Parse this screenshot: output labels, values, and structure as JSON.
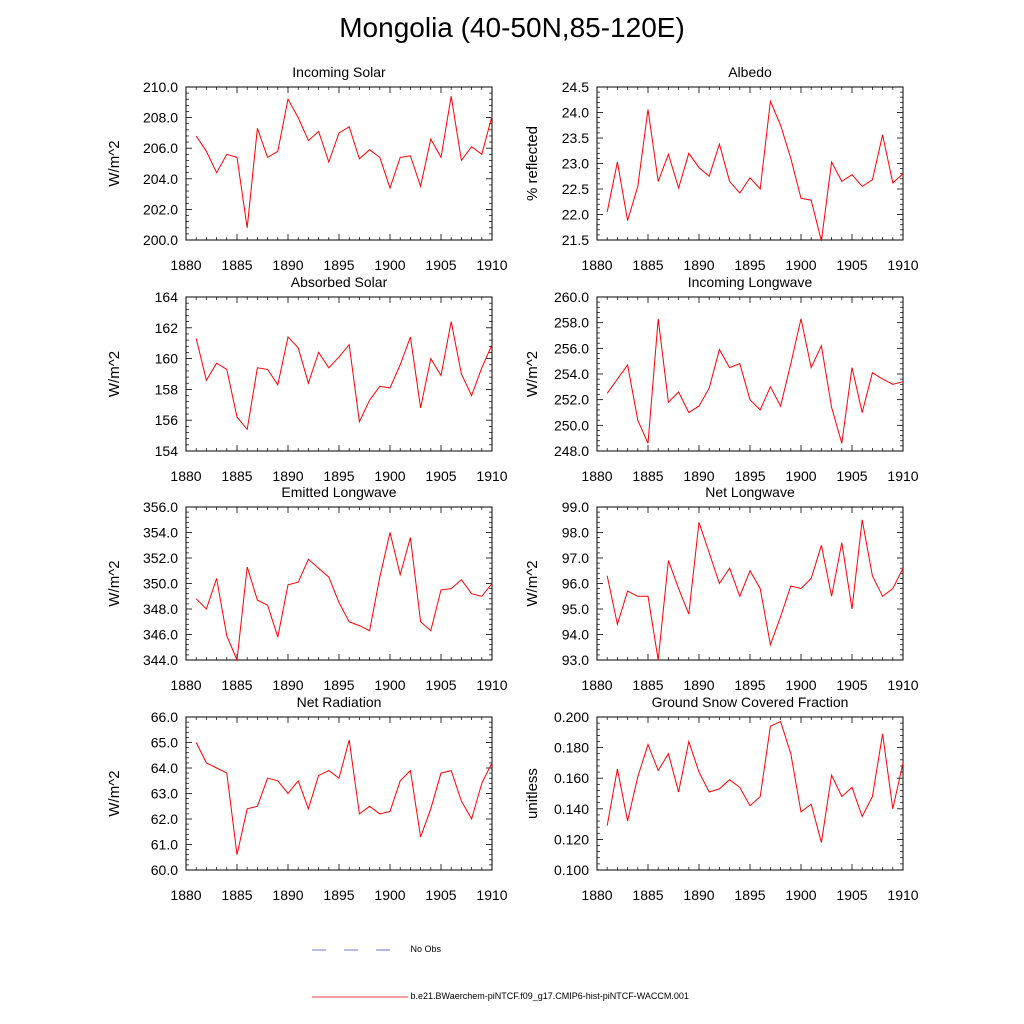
{
  "page": {
    "title": "Mongolia (40-50N,85-120E)"
  },
  "legend": {
    "entries": [
      {
        "label": "No Obs",
        "color": "#3b4cc0",
        "style": "dashed"
      },
      {
        "label": "b.e21.BWaerchem-piNTCF.f09_g17.CMIP6-hist-piNTCF-WACCM.001",
        "color": "#ff0000",
        "style": "solid"
      }
    ]
  },
  "chart_data": [
    {
      "type": "line",
      "title": "Incoming Solar",
      "ylabel": "W/m^2",
      "xlim": [
        1880,
        1910
      ],
      "ylim": [
        200,
        210
      ],
      "xticks": [
        1880,
        1885,
        1890,
        1895,
        1900,
        1905,
        1910
      ],
      "yticks": [
        "200.0",
        "202.0",
        "204.0",
        "206.0",
        "208.0",
        "210.0"
      ],
      "x": [
        1881,
        1882,
        1883,
        1884,
        1885,
        1886,
        1887,
        1888,
        1889,
        1890,
        1891,
        1892,
        1893,
        1894,
        1895,
        1896,
        1897,
        1898,
        1899,
        1900,
        1901,
        1902,
        1903,
        1904,
        1905,
        1906,
        1907,
        1908,
        1909,
        1910
      ],
      "series": [
        {
          "color": "#ff0000",
          "values": [
            206.8,
            205.8,
            204.4,
            205.6,
            205.4,
            200.8,
            207.3,
            205.4,
            205.8,
            209.2,
            208.0,
            206.5,
            207.1,
            205.1,
            207.0,
            207.4,
            205.3,
            205.9,
            205.4,
            203.4,
            205.4,
            205.5,
            203.5,
            206.6,
            205.4,
            209.4,
            205.2,
            206.1,
            205.6,
            208.1
          ]
        }
      ]
    },
    {
      "type": "line",
      "title": "Albedo",
      "ylabel": "% reflected",
      "xlim": [
        1880,
        1910
      ],
      "ylim": [
        21.5,
        24.5
      ],
      "xticks": [
        1880,
        1885,
        1890,
        1895,
        1900,
        1905,
        1910
      ],
      "yticks": [
        "21.5",
        "22.0",
        "22.5",
        "23.0",
        "23.5",
        "24.0",
        "24.5"
      ],
      "x": [
        1881,
        1882,
        1883,
        1884,
        1885,
        1886,
        1887,
        1888,
        1889,
        1890,
        1891,
        1892,
        1893,
        1894,
        1895,
        1896,
        1897,
        1898,
        1899,
        1900,
        1901,
        1902,
        1903,
        1904,
        1905,
        1906,
        1907,
        1908,
        1909,
        1910
      ],
      "series": [
        {
          "color": "#ff0000",
          "values": [
            22.05,
            23.03,
            21.88,
            22.55,
            24.06,
            22.65,
            23.18,
            22.52,
            23.2,
            22.92,
            22.75,
            23.38,
            22.65,
            22.42,
            22.72,
            22.5,
            24.22,
            23.75,
            23.1,
            22.32,
            22.28,
            21.48,
            23.03,
            22.65,
            22.78,
            22.55,
            22.68,
            23.56,
            22.62,
            22.8
          ]
        }
      ]
    },
    {
      "type": "line",
      "title": "Absorbed Solar",
      "ylabel": "W/m^2",
      "xlim": [
        1880,
        1910
      ],
      "ylim": [
        154,
        164
      ],
      "xticks": [
        1880,
        1885,
        1890,
        1895,
        1900,
        1905,
        1910
      ],
      "yticks": [
        "154",
        "156",
        "158",
        "160",
        "162",
        "164"
      ],
      "x": [
        1881,
        1882,
        1883,
        1884,
        1885,
        1886,
        1887,
        1888,
        1889,
        1890,
        1891,
        1892,
        1893,
        1894,
        1895,
        1896,
        1897,
        1898,
        1899,
        1900,
        1901,
        1902,
        1903,
        1904,
        1905,
        1906,
        1907,
        1908,
        1909,
        1910
      ],
      "series": [
        {
          "color": "#ff0000",
          "values": [
            161.3,
            158.6,
            159.7,
            159.3,
            156.2,
            155.4,
            159.4,
            159.3,
            158.3,
            161.4,
            160.7,
            158.4,
            160.4,
            159.4,
            160.1,
            160.9,
            155.9,
            157.3,
            158.2,
            158.1,
            159.6,
            161.4,
            156.8,
            160.0,
            158.9,
            162.4,
            159.0,
            157.6,
            159.4,
            160.9
          ]
        }
      ]
    },
    {
      "type": "line",
      "title": "Incoming Longwave",
      "ylabel": "W/m^2",
      "xlim": [
        1880,
        1910
      ],
      "ylim": [
        248,
        260
      ],
      "xticks": [
        1880,
        1885,
        1890,
        1895,
        1900,
        1905,
        1910
      ],
      "yticks": [
        "248.0",
        "250.0",
        "252.0",
        "254.0",
        "256.0",
        "258.0",
        "260.0"
      ],
      "x": [
        1881,
        1882,
        1883,
        1884,
        1885,
        1886,
        1887,
        1888,
        1889,
        1890,
        1891,
        1892,
        1893,
        1894,
        1895,
        1896,
        1897,
        1898,
        1899,
        1900,
        1901,
        1902,
        1903,
        1904,
        1905,
        1906,
        1907,
        1908,
        1909,
        1910
      ],
      "series": [
        {
          "color": "#ff0000",
          "values": [
            252.5,
            253.6,
            254.7,
            250.4,
            248.6,
            258.3,
            251.8,
            252.6,
            251.0,
            251.5,
            252.9,
            255.9,
            254.5,
            254.8,
            252.0,
            251.2,
            253.0,
            251.5,
            254.8,
            258.3,
            254.5,
            256.2,
            251.4,
            248.6,
            254.5,
            251.0,
            254.1,
            253.6,
            253.2,
            253.4
          ]
        }
      ]
    },
    {
      "type": "line",
      "title": "Emitted Longwave",
      "ylabel": "W/m^2",
      "xlim": [
        1880,
        1910
      ],
      "ylim": [
        344,
        356
      ],
      "xticks": [
        1880,
        1885,
        1890,
        1895,
        1900,
        1905,
        1910
      ],
      "yticks": [
        "344.0",
        "346.0",
        "348.0",
        "350.0",
        "352.0",
        "354.0",
        "356.0"
      ],
      "x": [
        1881,
        1882,
        1883,
        1884,
        1885,
        1886,
        1887,
        1888,
        1889,
        1890,
        1891,
        1892,
        1893,
        1894,
        1895,
        1896,
        1897,
        1898,
        1899,
        1900,
        1901,
        1902,
        1903,
        1904,
        1905,
        1906,
        1907,
        1908,
        1909,
        1910
      ],
      "series": [
        {
          "color": "#ff0000",
          "values": [
            348.8,
            348.0,
            350.4,
            345.9,
            344.0,
            351.3,
            348.7,
            348.3,
            345.8,
            349.9,
            350.1,
            351.9,
            351.2,
            350.5,
            348.5,
            347.0,
            346.7,
            346.3,
            350.5,
            354.0,
            350.7,
            353.6,
            347.0,
            346.3,
            349.5,
            349.6,
            350.3,
            349.2,
            349.0,
            350.0
          ]
        }
      ]
    },
    {
      "type": "line",
      "title": "Net Longwave",
      "ylabel": "W/m^2",
      "xlim": [
        1880,
        1910
      ],
      "ylim": [
        93,
        99
      ],
      "xticks": [
        1880,
        1885,
        1890,
        1895,
        1900,
        1905,
        1910
      ],
      "yticks": [
        "93.0",
        "94.0",
        "95.0",
        "96.0",
        "97.0",
        "98.0",
        "99.0"
      ],
      "x": [
        1881,
        1882,
        1883,
        1884,
        1885,
        1886,
        1887,
        1888,
        1889,
        1890,
        1891,
        1892,
        1893,
        1894,
        1895,
        1896,
        1897,
        1898,
        1899,
        1900,
        1901,
        1902,
        1903,
        1904,
        1905,
        1906,
        1907,
        1908,
        1909,
        1910
      ],
      "series": [
        {
          "color": "#ff0000",
          "values": [
            96.3,
            94.4,
            95.7,
            95.5,
            95.5,
            93.0,
            96.9,
            95.8,
            94.8,
            98.4,
            97.2,
            96.0,
            96.6,
            95.5,
            96.5,
            95.8,
            93.6,
            94.7,
            95.9,
            95.8,
            96.2,
            97.5,
            95.5,
            97.6,
            95.0,
            98.5,
            96.3,
            95.5,
            95.8,
            96.6
          ]
        }
      ]
    },
    {
      "type": "line",
      "title": "Net Radiation",
      "ylabel": "W/m^2",
      "xlim": [
        1880,
        1910
      ],
      "ylim": [
        60,
        66
      ],
      "xticks": [
        1880,
        1885,
        1890,
        1895,
        1900,
        1905,
        1910
      ],
      "yticks": [
        "60.0",
        "61.0",
        "62.0",
        "63.0",
        "64.0",
        "65.0",
        "66.0"
      ],
      "x": [
        1881,
        1882,
        1883,
        1884,
        1885,
        1886,
        1887,
        1888,
        1889,
        1890,
        1891,
        1892,
        1893,
        1894,
        1895,
        1896,
        1897,
        1898,
        1899,
        1900,
        1901,
        1902,
        1903,
        1904,
        1905,
        1906,
        1907,
        1908,
        1909,
        1910
      ],
      "series": [
        {
          "color": "#ff0000",
          "values": [
            65.0,
            64.2,
            64.0,
            63.8,
            60.6,
            62.4,
            62.5,
            63.6,
            63.5,
            63.0,
            63.5,
            62.4,
            63.7,
            63.9,
            63.6,
            65.1,
            62.2,
            62.5,
            62.2,
            62.3,
            63.5,
            63.9,
            61.3,
            62.4,
            63.8,
            63.9,
            62.7,
            62.0,
            63.4,
            64.2
          ]
        }
      ]
    },
    {
      "type": "line",
      "title": "Ground Snow Covered Fraction",
      "ylabel": "unitless",
      "xlim": [
        1880,
        1910
      ],
      "ylim": [
        0.1,
        0.2
      ],
      "xticks": [
        1880,
        1885,
        1890,
        1895,
        1900,
        1905,
        1910
      ],
      "yticks": [
        "0.100",
        "0.120",
        "0.140",
        "0.160",
        "0.180",
        "0.200"
      ],
      "x": [
        1881,
        1882,
        1883,
        1884,
        1885,
        1886,
        1887,
        1888,
        1889,
        1890,
        1891,
        1892,
        1893,
        1894,
        1895,
        1896,
        1897,
        1898,
        1899,
        1900,
        1901,
        1902,
        1903,
        1904,
        1905,
        1906,
        1907,
        1908,
        1909,
        1910
      ],
      "series": [
        {
          "color": "#ff0000",
          "values": [
            0.129,
            0.166,
            0.132,
            0.161,
            0.182,
            0.165,
            0.176,
            0.151,
            0.184,
            0.164,
            0.151,
            0.153,
            0.159,
            0.154,
            0.142,
            0.148,
            0.194,
            0.197,
            0.176,
            0.138,
            0.143,
            0.118,
            0.162,
            0.148,
            0.154,
            0.135,
            0.148,
            0.189,
            0.14,
            0.17
          ]
        }
      ]
    }
  ]
}
